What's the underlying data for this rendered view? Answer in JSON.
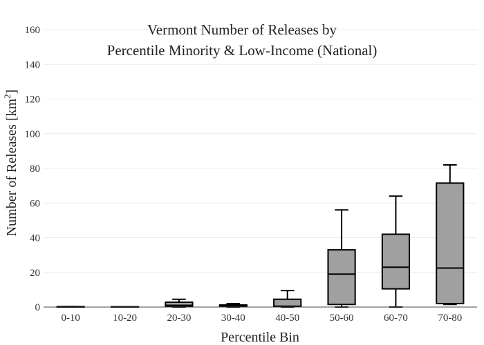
{
  "chart_data": {
    "type": "box",
    "title_lines": [
      "Vermont Number of Releases by",
      "Percentile Minority & Low-Income (National)"
    ],
    "xlabel": "Percentile Bin",
    "ylabel_main": "Number of Releases  [km",
    "ylabel_sup": "2",
    "ylabel_end": "]",
    "ylim": [
      0,
      160
    ],
    "yticks": [
      0,
      20,
      40,
      60,
      80,
      100,
      120,
      140,
      160
    ],
    "grid": true,
    "categories": [
      "0-10",
      "10-20",
      "20-30",
      "30-40",
      "40-50",
      "50-60",
      "60-70",
      "70-80"
    ],
    "boxes": [
      {
        "category": "0-10",
        "min": 0,
        "q1": 0,
        "median": 0,
        "q3": 0.3,
        "max": 0.3
      },
      {
        "category": "10-20",
        "min": 0,
        "q1": 0,
        "median": 0,
        "q3": 0.2,
        "max": 0.2
      },
      {
        "category": "20-30",
        "min": 0,
        "q1": 0.3,
        "median": 1,
        "q3": 2.8,
        "max": 4.5
      },
      {
        "category": "30-40",
        "min": 0,
        "q1": 0.2,
        "median": 0.5,
        "q3": 1.2,
        "max": 2
      },
      {
        "category": "40-50",
        "min": 0,
        "q1": 0.2,
        "median": 0.5,
        "q3": 4.5,
        "max": 9.5
      },
      {
        "category": "50-60",
        "min": 0,
        "q1": 1.5,
        "median": 19,
        "q3": 33,
        "max": 56
      },
      {
        "category": "60-70",
        "min": 0,
        "q1": 10.5,
        "median": 23,
        "q3": 42,
        "max": 64
      },
      {
        "category": "70-80",
        "min": 1.5,
        "q1": 2,
        "median": 22.5,
        "q3": 71.5,
        "max": 82
      }
    ]
  }
}
